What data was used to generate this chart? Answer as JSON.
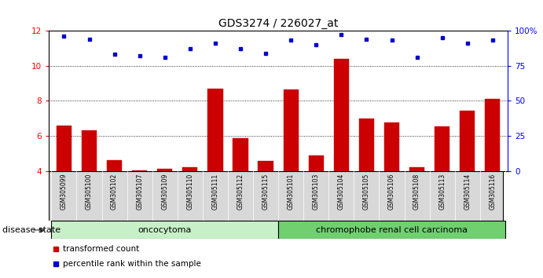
{
  "title": "GDS3274 / 226027_at",
  "samples": [
    "GSM305099",
    "GSM305100",
    "GSM305102",
    "GSM305107",
    "GSM305109",
    "GSM305110",
    "GSM305111",
    "GSM305112",
    "GSM305115",
    "GSM305101",
    "GSM305103",
    "GSM305104",
    "GSM305105",
    "GSM305106",
    "GSM305108",
    "GSM305113",
    "GSM305114",
    "GSM305116"
  ],
  "transformed_count": [
    6.6,
    6.3,
    4.6,
    4.05,
    4.1,
    4.2,
    8.7,
    5.85,
    4.55,
    8.65,
    4.9,
    10.4,
    7.0,
    6.75,
    4.2,
    6.55,
    7.45,
    8.1
  ],
  "percentile_rank": [
    96,
    94,
    83,
    82,
    81,
    87,
    91,
    87,
    84,
    93,
    90,
    97,
    94,
    93,
    81,
    95,
    91,
    93
  ],
  "ylim_left": [
    4,
    12
  ],
  "ylim_right": [
    0,
    100
  ],
  "yticks_left": [
    4,
    6,
    8,
    10,
    12
  ],
  "ytick_labels_left": [
    "4",
    "6",
    "8",
    "10",
    "12"
  ],
  "yticks_right": [
    0,
    25,
    50,
    75,
    100
  ],
  "ytick_labels_right": [
    "0",
    "25",
    "50",
    "75",
    "100%"
  ],
  "groups": [
    {
      "label": "oncocytoma",
      "start": 0,
      "end": 9,
      "color": "#c8f0c8"
    },
    {
      "label": "chromophobe renal cell carcinoma",
      "start": 9,
      "end": 18,
      "color": "#70d070"
    }
  ],
  "disease_state_label": "disease state",
  "bar_color": "#cc0000",
  "dot_color": "#0000cc",
  "bar_bottom": 4,
  "legend_items": [
    {
      "color": "#cc0000",
      "label": "transformed count"
    },
    {
      "color": "#0000cc",
      "label": "percentile rank within the sample"
    }
  ],
  "title_fontsize": 10,
  "tick_fontsize": 7.5,
  "label_fontsize": 8,
  "group_label_fontsize": 8,
  "sample_fontsize": 5.5
}
